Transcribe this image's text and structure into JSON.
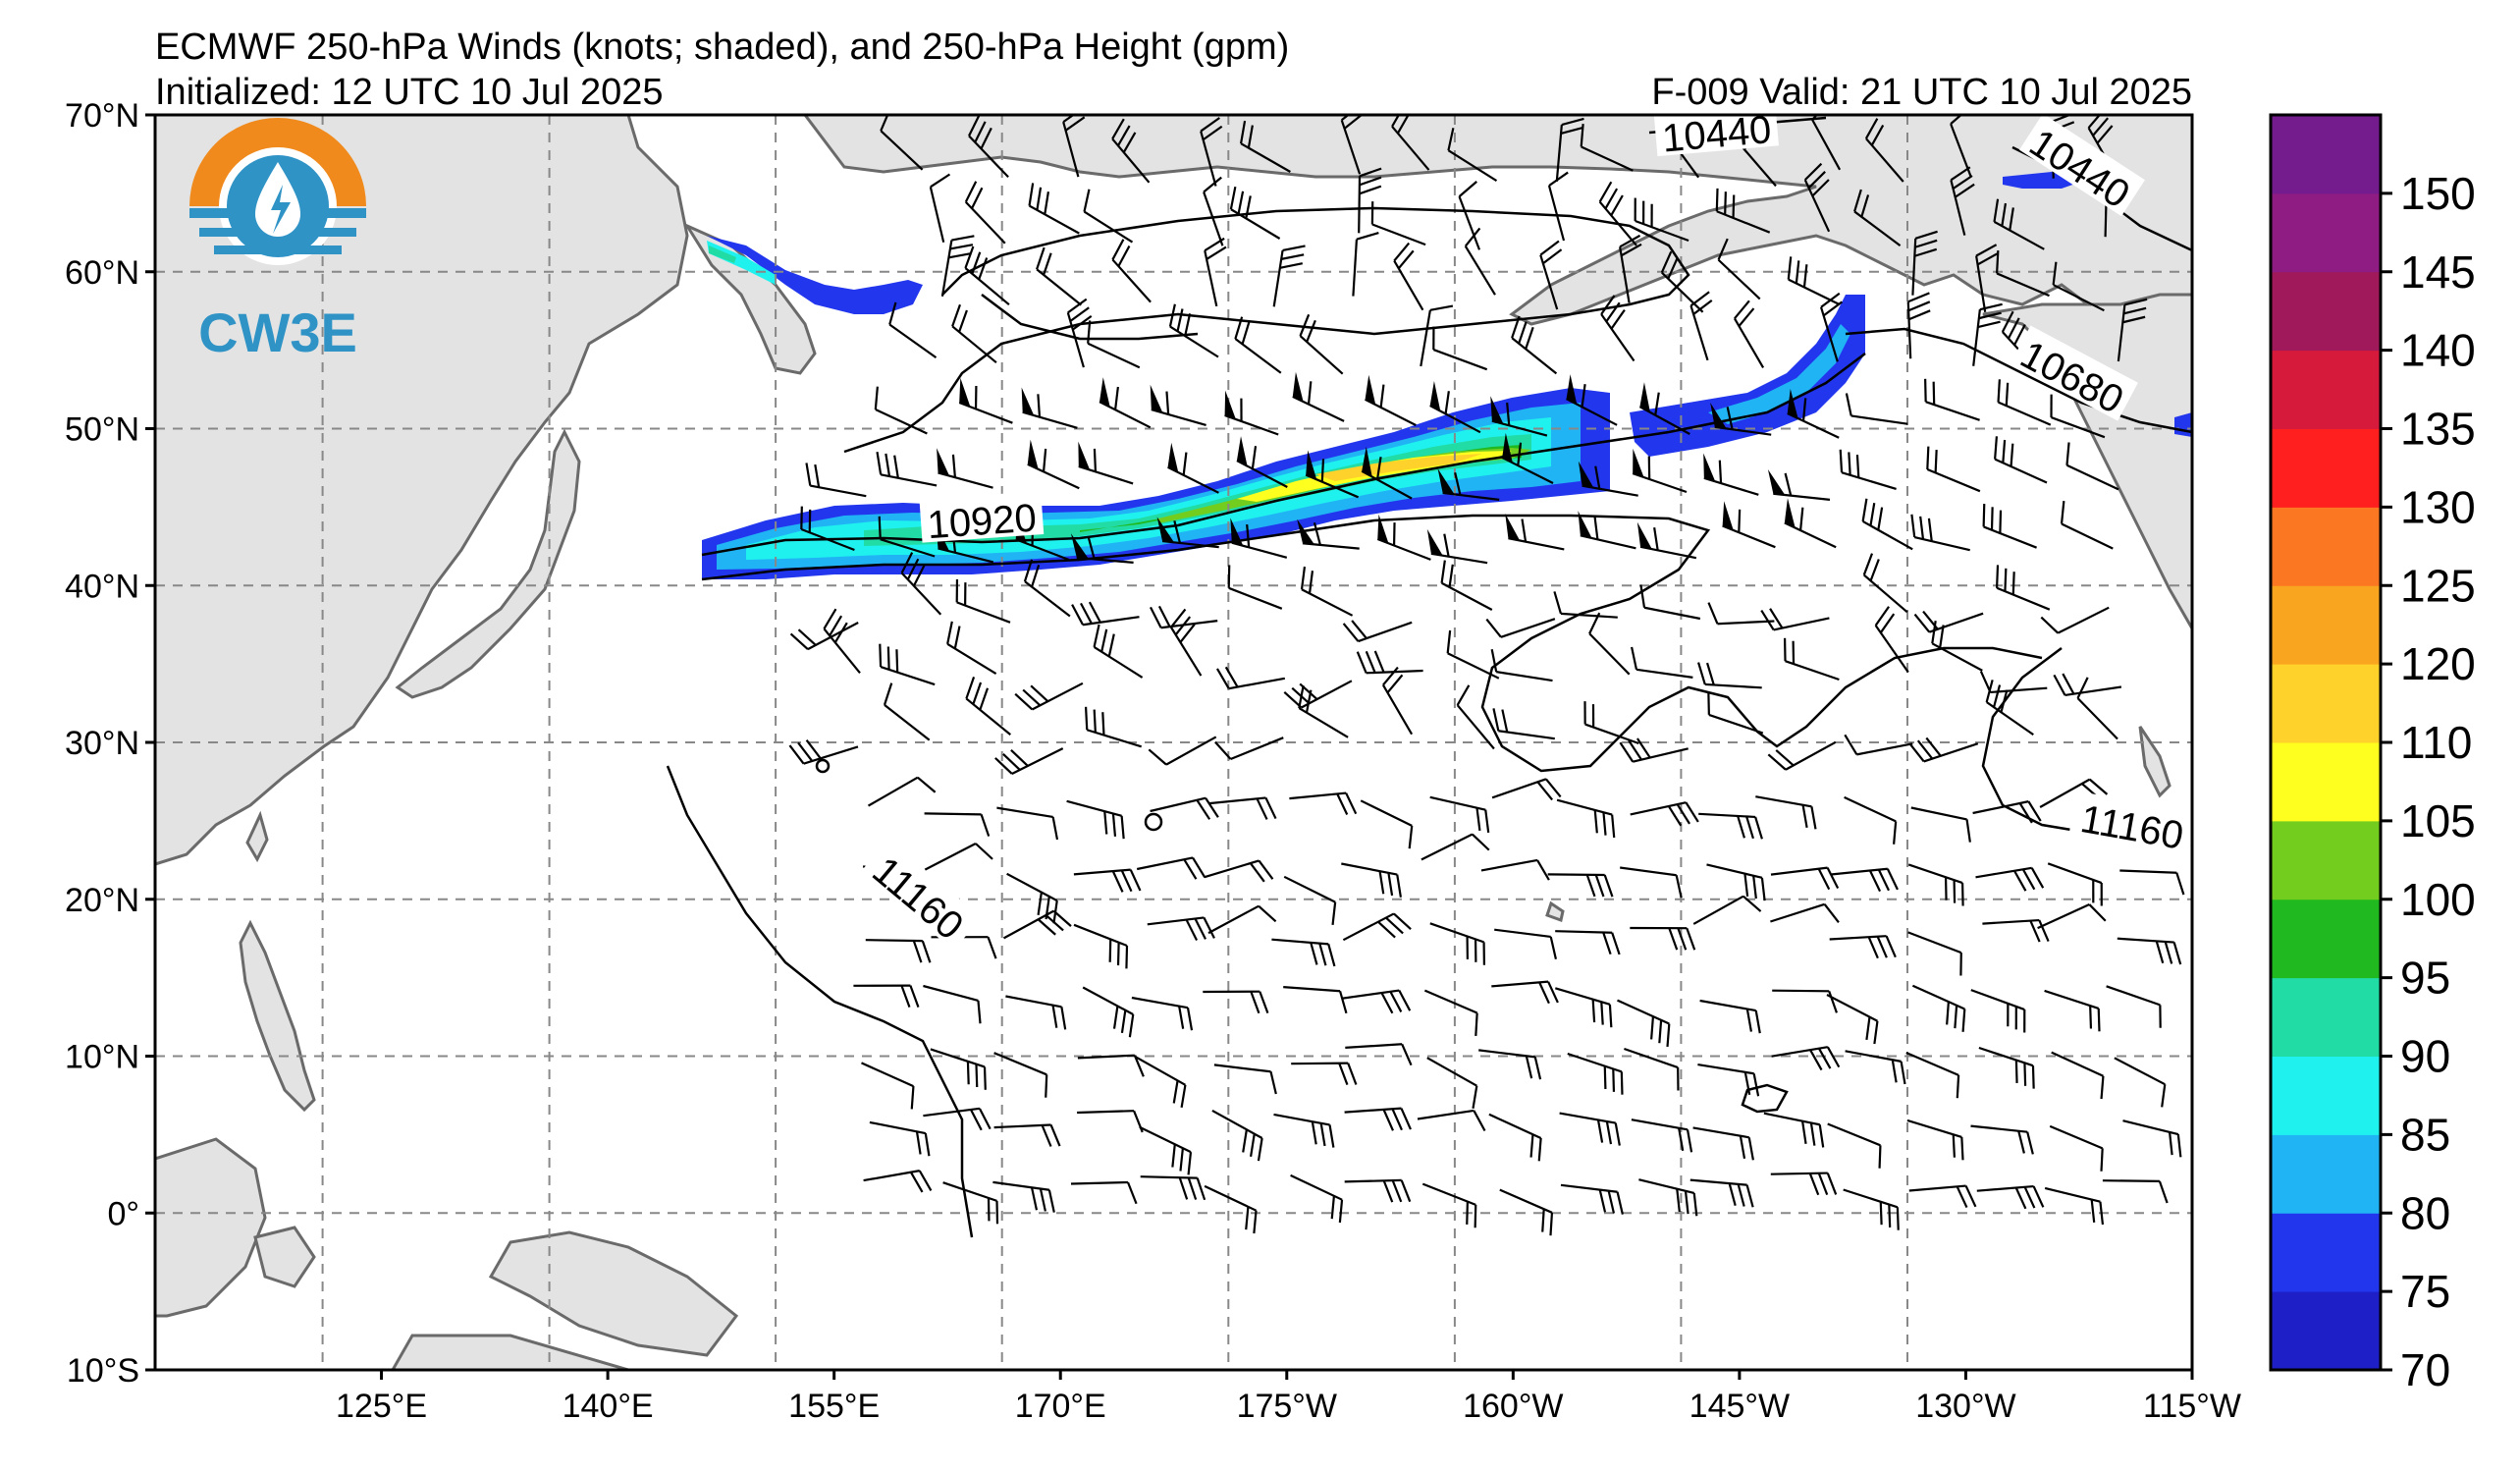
{
  "header": {
    "title": "ECMWF 250-hPa Winds (knots; shaded), and 250-hPa Height (gpm)",
    "initialized": "Initialized: 12 UTC 10 Jul 2025",
    "valid": "F-009  Valid: 21 UTC 10 Jul 2025"
  },
  "logo": {
    "text": "CW3E",
    "icon": "water-drop-lightning-icon"
  },
  "map": {
    "lon_range": [
      110,
      245
    ],
    "lat_range": [
      -10,
      70
    ],
    "lat_ticks": [
      {
        "value": 70,
        "label": "70°N"
      },
      {
        "value": 60,
        "label": "60°N"
      },
      {
        "value": 50,
        "label": "50°N"
      },
      {
        "value": 40,
        "label": "40°N"
      },
      {
        "value": 30,
        "label": "30°N"
      },
      {
        "value": 20,
        "label": "20°N"
      },
      {
        "value": 10,
        "label": "10°N"
      },
      {
        "value": 0,
        "label": "0°"
      },
      {
        "value": -10,
        "label": "10°S"
      }
    ],
    "lon_ticks": [
      {
        "value": 125,
        "label": "125°E"
      },
      {
        "value": 140,
        "label": "140°E"
      },
      {
        "value": 155,
        "label": "155°E"
      },
      {
        "value": 170,
        "label": "170°E"
      },
      {
        "value": 185,
        "label": "175°W"
      },
      {
        "value": 200,
        "label": "160°W"
      },
      {
        "value": 215,
        "label": "145°W"
      },
      {
        "value": 230,
        "label": "130°W"
      },
      {
        "value": 245,
        "label": "115°W"
      }
    ],
    "height_contour_labels": [
      {
        "text": "10440",
        "lon": 213.5,
        "lat": 68.7,
        "angle": -5
      },
      {
        "text": "10440",
        "lon": 237.5,
        "lat": 66.5,
        "angle": 33
      },
      {
        "text": "10680",
        "lon": 237.0,
        "lat": 53.2,
        "angle": 28
      },
      {
        "text": "10920",
        "lon": 164.8,
        "lat": 44.0,
        "angle": -4
      },
      {
        "text": "11160",
        "lon": 160.5,
        "lat": 20.0,
        "angle": 40
      },
      {
        "text": "11160",
        "lon": 241.0,
        "lat": 24.5,
        "angle": 10
      }
    ]
  },
  "colorbar": {
    "levels": [
      70,
      75,
      80,
      85,
      90,
      95,
      100,
      105,
      110,
      120,
      125,
      130,
      135,
      140,
      145,
      150,
      155
    ],
    "colors": [
      "#1e1fc6",
      "#2236ee",
      "#21b4f5",
      "#1ff2ee",
      "#22dca5",
      "#20b91f",
      "#73cd1f",
      "#ffff1f",
      "#fed22a",
      "#f9a51f",
      "#fb7721",
      "#ff1f1f",
      "#d61a3b",
      "#a0195a",
      "#8f1c83",
      "#741b8e"
    ],
    "tick_labels": [
      "70",
      "75",
      "80",
      "85",
      "90",
      "95",
      "100",
      "105",
      "110",
      "120",
      "125",
      "130",
      "135",
      "140",
      "145",
      "150"
    ]
  }
}
